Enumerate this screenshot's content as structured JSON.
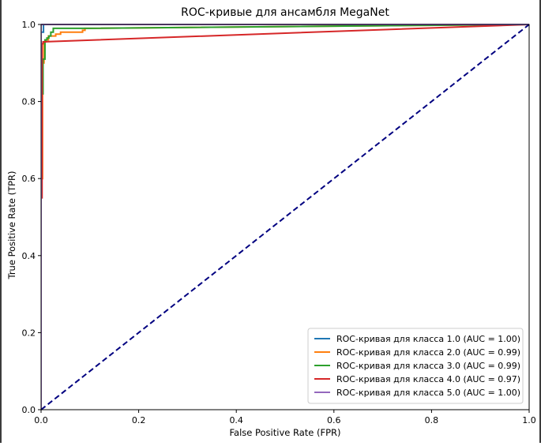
{
  "chart_data": {
    "type": "line",
    "title": "ROC-кривые для ансамбля MegaNet",
    "xlabel": "False Positive Rate (FPR)",
    "ylabel": "True Positive Rate (TPR)",
    "xlim": [
      0.0,
      1.0
    ],
    "ylim": [
      0.0,
      1.0
    ],
    "xticks": [
      "0.0",
      "0.2",
      "0.4",
      "0.6",
      "0.8",
      "1.0"
    ],
    "yticks": [
      "0.0",
      "0.2",
      "0.4",
      "0.6",
      "0.8",
      "1.0"
    ],
    "grid": false,
    "legend_position": "lower-right",
    "series": [
      {
        "name": "ROC-кривая для класса 1.0 (AUC = 1.00)",
        "color": "#1f77b4",
        "x": [
          0.0,
          0.0,
          0.005,
          0.005,
          0.12,
          1.0
        ],
        "y": [
          0.0,
          0.98,
          0.98,
          1.0,
          1.0,
          1.0
        ]
      },
      {
        "name": "ROC-кривая для класса 2.0 (AUC = 0.99)",
        "color": "#ff7f0e",
        "x": [
          0.0,
          0.0,
          0.003,
          0.003,
          0.006,
          0.006,
          0.01,
          0.01,
          0.015,
          0.015,
          0.03,
          0.03,
          0.04,
          0.04,
          0.085,
          0.085,
          0.09,
          0.09,
          1.0
        ],
        "y": [
          0.0,
          0.6,
          0.6,
          0.9,
          0.9,
          0.955,
          0.955,
          0.96,
          0.96,
          0.97,
          0.97,
          0.975,
          0.975,
          0.98,
          0.98,
          0.985,
          0.985,
          0.99,
          1.0
        ]
      },
      {
        "name": "ROC-кривая для класса 3.0 (AUC = 0.99)",
        "color": "#2ca02c",
        "x": [
          0.0,
          0.0,
          0.004,
          0.004,
          0.008,
          0.008,
          0.012,
          0.012,
          0.016,
          0.016,
          0.02,
          0.02,
          0.025,
          0.025,
          0.1,
          0.1,
          1.0
        ],
        "y": [
          0.0,
          0.82,
          0.82,
          0.91,
          0.91,
          0.96,
          0.96,
          0.965,
          0.965,
          0.97,
          0.97,
          0.98,
          0.98,
          0.99,
          0.99,
          0.99,
          1.0
        ]
      },
      {
        "name": "ROC-кривая для класса 4.0 (AUC = 0.97)",
        "color": "#d62728",
        "x": [
          0.0,
          0.0,
          0.002,
          0.002,
          0.004,
          0.004,
          1.0
        ],
        "y": [
          0.0,
          0.55,
          0.55,
          0.95,
          0.95,
          0.955,
          1.0
        ]
      },
      {
        "name": "ROC-кривая для класса 5.0 (AUC = 1.00)",
        "color": "#9467bd",
        "x": [
          0.0,
          0.0,
          1.0
        ],
        "y": [
          0.0,
          1.0,
          1.0
        ]
      }
    ],
    "reference_line": {
      "x": [
        0.0,
        1.0
      ],
      "y": [
        0.0,
        1.0
      ],
      "color": "#000080",
      "style": "dashed"
    }
  }
}
